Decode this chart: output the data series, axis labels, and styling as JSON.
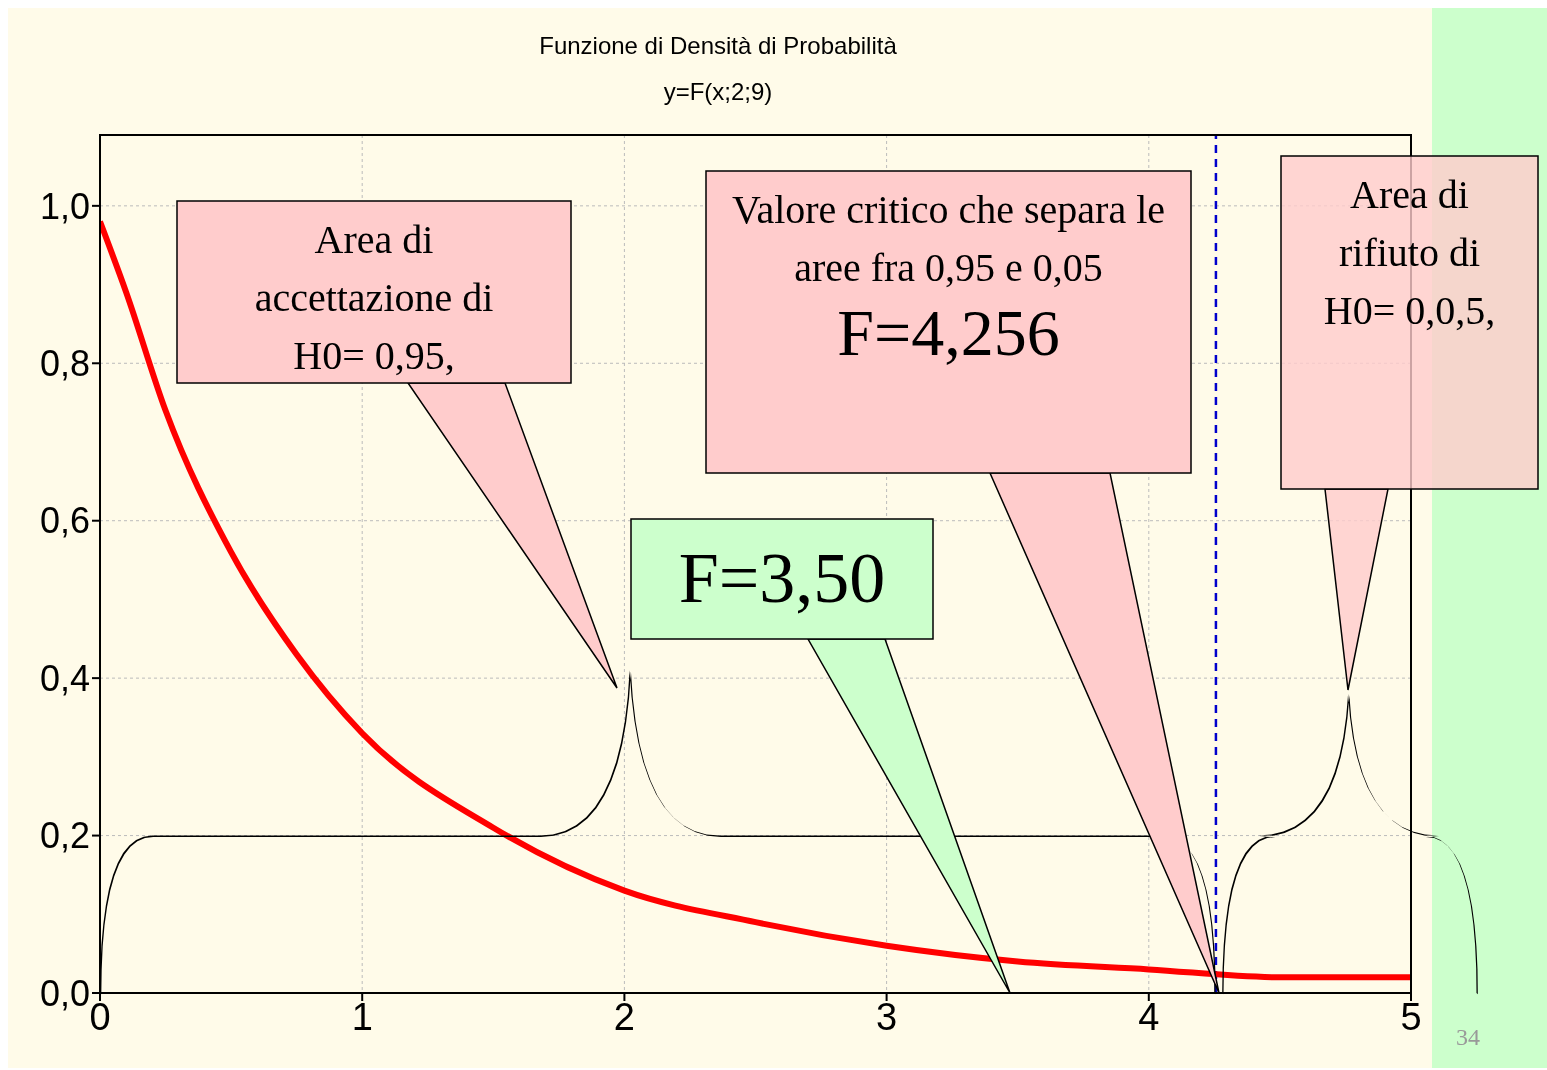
{
  "chart_data": {
    "type": "line",
    "title": "Funzione di Densità di Probabilità",
    "subtitle": "y=F(x;2;9)",
    "x": [
      0,
      0.1,
      0.25,
      0.5,
      0.75,
      1,
      1.5,
      2,
      2.5,
      3,
      3.5,
      4,
      4.5,
      5
    ],
    "series": [
      {
        "color": "#ff0000",
        "values": [
          0.98,
          0.89,
          0.74,
          0.56,
          0.43,
          0.33,
          0.21,
          0.13,
          0.09,
          0.06,
          0.04,
          0.03,
          0.02,
          0.02
        ]
      }
    ],
    "xlim": [
      0,
      5
    ],
    "xticks": [
      0,
      1,
      2,
      3,
      4,
      5
    ],
    "ylim": [
      0,
      1.09
    ],
    "yticks": [
      {
        "value": 0,
        "label": "0,0"
      },
      {
        "value": 0.2,
        "label": "0,2"
      },
      {
        "value": 0.4,
        "label": "0,4"
      },
      {
        "value": 0.6,
        "label": "0,6"
      },
      {
        "value": 0.8,
        "label": "0,8"
      },
      {
        "value": 1,
        "label": "1,0"
      }
    ],
    "grid": true,
    "marker": "none",
    "line_style": "solid",
    "ref_lines": [
      {
        "axis": "x",
        "value": 4.256,
        "color": "#0000cc",
        "line_style": "dashed"
      }
    ],
    "annotations": [
      "Area di accettazione di H0= 0,95,",
      "Valore critico che separa le aree fra 0,95 e 0,05",
      "F=4,256",
      "Area di rifiuto  di H0= 0,0,5,",
      "F=3,50",
      "34"
    ]
  }
}
